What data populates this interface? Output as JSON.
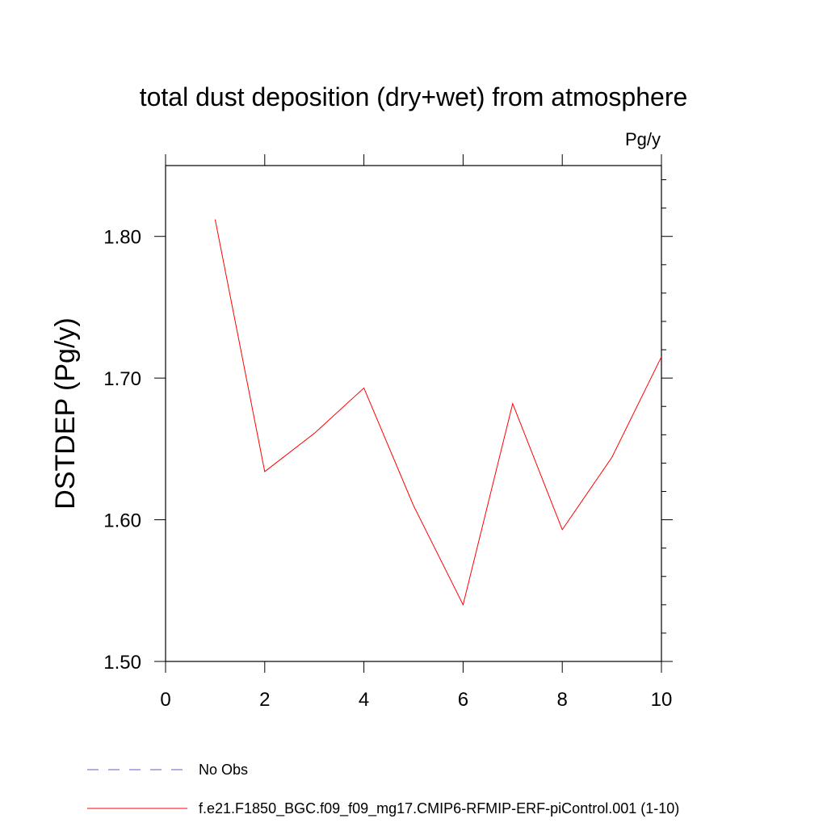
{
  "chart_data": {
    "type": "line",
    "title": "total dust deposition (dry+wet) from atmosphere",
    "units_label": "Pg/y",
    "ylabel": "DSTDEP  (Pg/y)",
    "xlabel": "",
    "xlim": [
      0,
      10
    ],
    "ylim": [
      1.5,
      1.85
    ],
    "x_ticks": [
      0,
      2,
      4,
      6,
      8,
      10
    ],
    "x_tick_labels": [
      "0",
      "2",
      "4",
      "6",
      "8",
      "10"
    ],
    "y_ticks": [
      1.5,
      1.6,
      1.7,
      1.8
    ],
    "y_tick_labels": [
      "1.50",
      "1.60",
      "1.70",
      "1.80"
    ],
    "grid": false,
    "legend_position": "bottom",
    "series": [
      {
        "name": "f.e21.F1850_BGC.f09_f09_mg17.CMIP6-RFMIP-ERF-piControl.001 (1-10)",
        "color": "#ff0000",
        "line_style": "solid",
        "x": [
          1,
          2,
          3,
          4,
          5,
          6,
          7,
          8,
          9,
          10
        ],
        "y": [
          1.812,
          1.634,
          1.661,
          1.693,
          1.61,
          1.54,
          1.682,
          1.593,
          1.644,
          1.715
        ]
      }
    ],
    "legend": [
      {
        "label": "No Obs",
        "color": "#6a5acd",
        "line_style": "dashed"
      },
      {
        "label": "f.e21.F1850_BGC.f09_f09_mg17.CMIP6-RFMIP-ERF-piControl.001 (1-10)",
        "color": "#ff0000",
        "line_style": "solid"
      }
    ]
  }
}
